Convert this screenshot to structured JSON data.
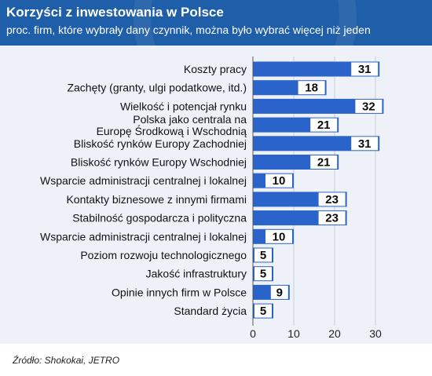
{
  "header": {
    "title": "Korzyści z inwestowania w Polsce",
    "subtitle": "proc. firm, które wybrały dany czynnik, można było wybrać więcej niż jeden"
  },
  "source": "Źródło: Shokokai, JETRO",
  "colors": {
    "header_bg": "#1f5ea8",
    "plot_bg": "#eef2f8",
    "bar": "#2a63c9",
    "value_box": "#ffffff"
  },
  "chart_data": {
    "type": "bar",
    "orientation": "horizontal",
    "categories": [
      [
        "Koszty pracy"
      ],
      [
        "Zachęty (granty, ulgi podatkowe, itd.)"
      ],
      [
        "Wielkość i potencjał rynku"
      ],
      [
        "Polska jako centrala na",
        "Europę Środkową i Wschodnią"
      ],
      [
        "Bliskość rynków Europy Zachodniej"
      ],
      [
        "Bliskość rynków Europy Wschodniej"
      ],
      [
        "Wsparcie administracji centralnej i lokalnej"
      ],
      [
        "Kontakty biznesowe z innymi firmami"
      ],
      [
        "Stabilność gospodarcza i polityczna"
      ],
      [
        "Wsparcie administracji centralnej i lokalnej"
      ],
      [
        "Poziom rozwoju technologicznego"
      ],
      [
        "Jakość infrastruktury"
      ],
      [
        "Opinie innych firm w Polsce"
      ],
      [
        "Standard życia"
      ]
    ],
    "values": [
      31,
      18,
      32,
      21,
      31,
      21,
      10,
      23,
      23,
      10,
      5,
      5,
      9,
      5
    ],
    "xticks": [
      0,
      10,
      20,
      30
    ],
    "xlim": [
      0,
      35
    ],
    "grid": true,
    "title": "Korzyści z inwestowania w Polsce",
    "subtitle": "proc. firm, które wybrały dany czynnik, można było wybrać więcej niż jeden"
  }
}
